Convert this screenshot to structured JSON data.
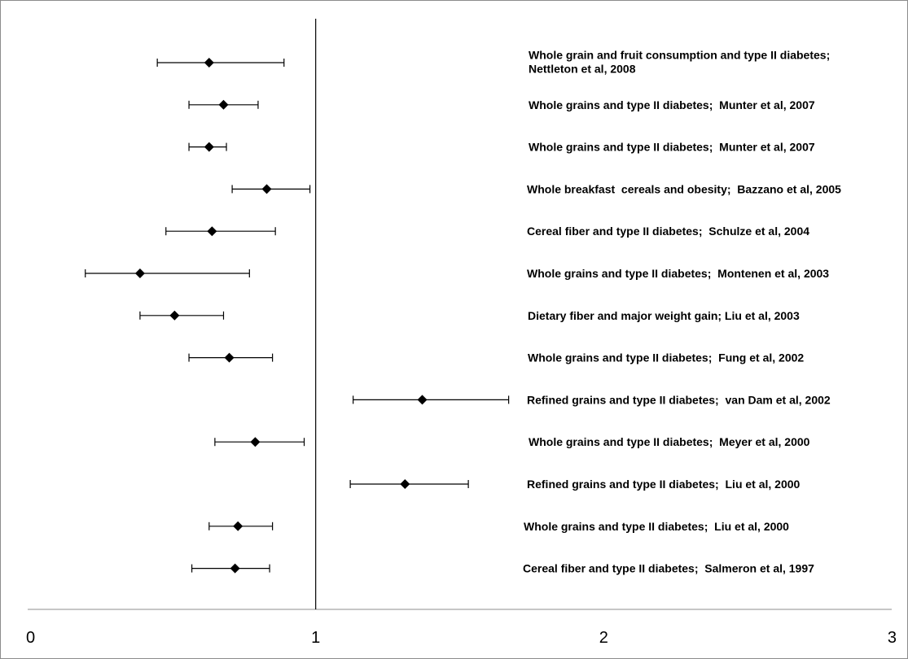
{
  "chart_data": {
    "type": "forest",
    "title": "",
    "xlabel": "",
    "ylabel": "",
    "xlim": [
      0,
      3
    ],
    "xticks": [
      "0",
      "1",
      "2",
      "3"
    ],
    "reference_line": 1,
    "grid": false,
    "legend": "none",
    "marker": "diamond",
    "color": "#000000",
    "series": [
      {
        "studies": [
          {
            "label": "Whole grain and fruit consumption and type II diabetes;\nNettleton et al, 2008",
            "estimate": 0.63,
            "lower": 0.45,
            "upper": 0.89
          },
          {
            "label": "Whole grains and type II diabetes;  Munter et al, 2007",
            "estimate": 0.68,
            "lower": 0.56,
            "upper": 0.8
          },
          {
            "label": "Whole grains and type II diabetes;  Munter et al, 2007",
            "estimate": 0.63,
            "lower": 0.56,
            "upper": 0.69
          },
          {
            "label": "Whole breakfast  cereals and obesity;  Bazzano et al, 2005",
            "estimate": 0.83,
            "lower": 0.71,
            "upper": 0.98
          },
          {
            "label": "Cereal fiber and type II diabetes;  Schulze et al, 2004",
            "estimate": 0.64,
            "lower": 0.48,
            "upper": 0.86
          },
          {
            "label": "Whole grains and type II diabetes;  Montenen et al, 2003",
            "estimate": 0.39,
            "lower": 0.2,
            "upper": 0.77
          },
          {
            "label": "Dietary fiber and major weight gain; Liu et al, 2003",
            "estimate": 0.51,
            "lower": 0.39,
            "upper": 0.68
          },
          {
            "label": "Whole grains and type II diabetes;  Fung et al, 2002",
            "estimate": 0.7,
            "lower": 0.56,
            "upper": 0.85
          },
          {
            "label": "Refined grains and type II diabetes;  van Dam et al, 2002",
            "estimate": 1.37,
            "lower": 1.13,
            "upper": 1.67
          },
          {
            "label": "Whole grains and type II diabetes;  Meyer et al, 2000",
            "estimate": 0.79,
            "lower": 0.65,
            "upper": 0.96
          },
          {
            "label": "Refined grains and type II diabetes;  Liu et al, 2000",
            "estimate": 1.31,
            "lower": 1.12,
            "upper": 1.53
          },
          {
            "label": "Whole grains and type II diabetes;  Liu et al, 2000",
            "estimate": 0.73,
            "lower": 0.63,
            "upper": 0.85
          },
          {
            "label": "Cereal fiber and type II diabetes;  Salmeron et al, 1997",
            "estimate": 0.72,
            "lower": 0.57,
            "upper": 0.84
          }
        ]
      }
    ]
  }
}
